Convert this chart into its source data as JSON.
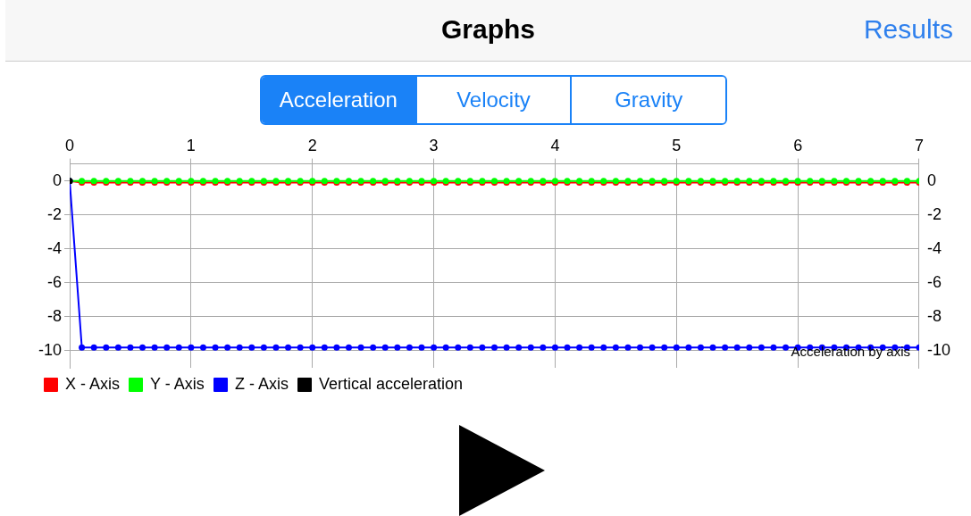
{
  "chart_data": {
    "type": "line",
    "title": "Graphs",
    "annotations": [
      "Acceleration by axis",
      "Results",
      "Acceleration",
      "Velocity",
      "Gravity"
    ],
    "x": [
      0,
      0.1,
      0.2,
      0.3,
      0.4,
      0.5,
      0.6,
      0.7,
      0.8,
      0.9,
      1,
      1.1,
      1.2,
      1.3,
      1.4,
      1.5,
      1.6,
      1.7,
      1.8,
      1.9,
      2,
      2.1,
      2.2,
      2.3,
      2.4,
      2.5,
      2.6,
      2.7,
      2.8,
      2.9,
      3,
      3.1,
      3.2,
      3.3,
      3.4,
      3.5,
      3.6,
      3.7,
      3.8,
      3.9,
      4,
      4.1,
      4.2,
      4.3,
      4.4,
      4.5,
      4.6,
      4.7,
      4.8,
      4.9,
      5,
      5.1,
      5.2,
      5.3,
      5.4,
      5.5,
      5.6,
      5.7,
      5.8,
      5.9,
      6,
      6.1,
      6.2,
      6.3,
      6.4,
      6.5,
      6.6,
      6.7,
      6.8,
      6.9,
      7
    ],
    "series": [
      {
        "name": "X - Axis",
        "color": "#ff0000",
        "values": [
          0,
          -0.1,
          -0.1,
          -0.1,
          -0.1,
          -0.1,
          -0.1,
          -0.1,
          -0.1,
          -0.1,
          -0.1,
          -0.1,
          -0.1,
          -0.1,
          -0.1,
          -0.1,
          -0.1,
          -0.1,
          -0.1,
          -0.1,
          -0.1,
          -0.1,
          -0.1,
          -0.1,
          -0.1,
          -0.1,
          -0.1,
          -0.1,
          -0.1,
          -0.1,
          -0.1,
          -0.1,
          -0.1,
          -0.1,
          -0.1,
          -0.1,
          -0.1,
          -0.1,
          -0.1,
          -0.1,
          -0.1,
          -0.1,
          -0.1,
          -0.1,
          -0.1,
          -0.1,
          -0.1,
          -0.1,
          -0.1,
          -0.1,
          -0.1,
          -0.1,
          -0.1,
          -0.1,
          -0.1,
          -0.1,
          -0.1,
          -0.1,
          -0.1,
          -0.1,
          -0.1,
          -0.1,
          -0.1,
          -0.1,
          -0.1,
          -0.1,
          -0.1,
          -0.1,
          -0.1,
          -0.1,
          -0.1
        ]
      },
      {
        "name": "Y - Axis",
        "color": "#00ff00",
        "values": [
          0,
          0,
          0,
          0,
          0,
          0,
          0,
          0,
          0,
          0,
          0,
          0,
          0,
          0,
          0,
          0,
          0,
          0,
          0,
          0,
          0,
          0,
          0,
          0,
          0,
          0,
          0,
          0,
          0,
          0,
          0,
          0,
          0,
          0,
          0,
          0,
          0,
          0,
          0,
          0,
          0,
          0,
          0,
          0,
          0,
          0,
          0,
          0,
          0,
          0,
          0,
          0,
          0,
          0,
          0,
          0,
          0,
          0,
          0,
          0,
          0,
          0,
          0,
          0,
          0,
          0,
          0,
          0,
          0,
          0,
          0
        ]
      },
      {
        "name": "Z - Axis",
        "color": "#0000ff",
        "values": [
          0,
          -9.8,
          -9.8,
          -9.8,
          -9.8,
          -9.8,
          -9.8,
          -9.8,
          -9.8,
          -9.8,
          -9.8,
          -9.8,
          -9.8,
          -9.8,
          -9.8,
          -9.8,
          -9.8,
          -9.8,
          -9.8,
          -9.8,
          -9.8,
          -9.8,
          -9.8,
          -9.8,
          -9.8,
          -9.8,
          -9.8,
          -9.8,
          -9.8,
          -9.8,
          -9.8,
          -9.8,
          -9.8,
          -9.8,
          -9.8,
          -9.8,
          -9.8,
          -9.8,
          -9.8,
          -9.8,
          -9.8,
          -9.8,
          -9.8,
          -9.8,
          -9.8,
          -9.8,
          -9.8,
          -9.8,
          -9.8,
          -9.8,
          -9.8,
          -9.8,
          -9.8,
          -9.8,
          -9.8,
          -9.8,
          -9.8,
          -9.8,
          -9.8,
          -9.8,
          -9.8,
          -9.8,
          -9.8,
          -9.8,
          -9.8,
          -9.8,
          -9.8,
          -9.8,
          -9.8,
          -9.8,
          -9.8
        ]
      },
      {
        "name": "Vertical acceleration",
        "color": "#000000",
        "x": [
          0
        ],
        "values": [
          0
        ]
      }
    ],
    "xlim": [
      0,
      7
    ],
    "xticks": [
      0,
      1,
      2,
      3,
      4,
      5,
      6,
      7
    ],
    "ylim": [
      -11,
      1
    ],
    "yticks": [
      0,
      -2,
      -4,
      -6,
      -8,
      -10
    ],
    "y2lim": [
      -11,
      1
    ],
    "y2ticks": [
      0,
      -2,
      -4,
      -6,
      -8,
      -10
    ],
    "grid": true,
    "legend": "bottom left",
    "marker": "circle",
    "line_style": "solid"
  }
}
